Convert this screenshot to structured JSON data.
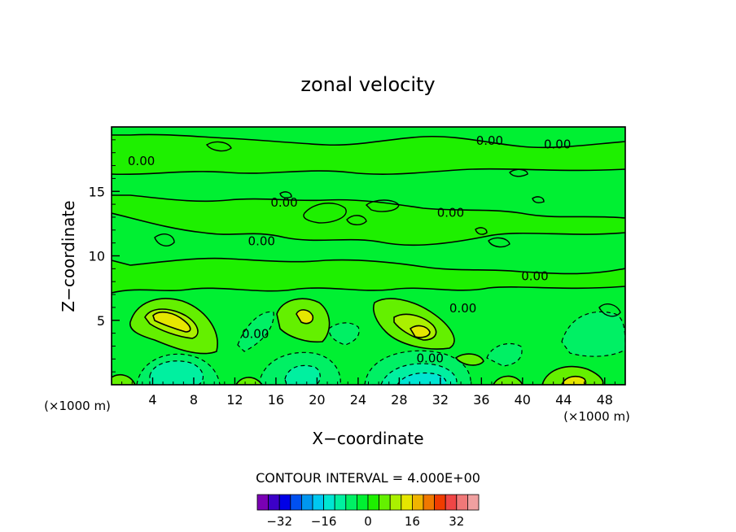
{
  "chart_data": {
    "type": "contour",
    "title": "zonal velocity",
    "xlabel": "X−coordinate",
    "ylabel": "Z−coordinate",
    "x_unit_left": "(×1000 m)",
    "x_unit_right": "(×1000 m)",
    "xlim": [
      0,
      50
    ],
    "ylim": [
      0,
      20
    ],
    "x_ticks": [
      4,
      8,
      12,
      16,
      20,
      24,
      28,
      32,
      36,
      40,
      44,
      48
    ],
    "y_ticks": [
      5,
      10,
      15
    ],
    "contour_interval_text": "CONTOUR INTERVAL = 4.000E+00",
    "contour_labels": [
      {
        "text": "0.00",
        "x": 36.8,
        "z": 19.0
      },
      {
        "text": "0.00",
        "x": 43.4,
        "z": 18.7
      },
      {
        "text": "0.00",
        "x": 2.9,
        "z": 17.4
      },
      {
        "text": "0.00",
        "x": 16.8,
        "z": 14.2
      },
      {
        "text": "0.00",
        "x": 33.0,
        "z": 13.4
      },
      {
        "text": "0.00",
        "x": 14.6,
        "z": 11.2
      },
      {
        "text": "0.00",
        "x": 41.2,
        "z": 8.5
      },
      {
        "text": "0.00",
        "x": 34.2,
        "z": 6.0
      },
      {
        "text": "0.00",
        "x": 14.0,
        "z": 4.0
      },
      {
        "text": "0.00",
        "x": 31.0,
        "z": 2.1
      }
    ],
    "colorbar": {
      "colors": [
        "#7a00b4",
        "#3c00c8",
        "#0000e6",
        "#0050f0",
        "#0096f0",
        "#00c8f0",
        "#00e6d2",
        "#00f0a0",
        "#00f064",
        "#00f032",
        "#1ef000",
        "#64f000",
        "#aaf000",
        "#e6e600",
        "#f0b400",
        "#f07800",
        "#f03c00",
        "#f04646",
        "#f07878",
        "#f0a0a0"
      ],
      "tick_labels": [
        "−32",
        "−16",
        "0",
        "16",
        "32"
      ],
      "tick_values": [
        -32,
        -16,
        0,
        16,
        32
      ],
      "vmin": -40,
      "vmax": 40
    },
    "features": [
      {
        "name": "positive-max",
        "x": 6,
        "z": 5.0,
        "level": 12
      },
      {
        "name": "positive-max",
        "x": 18.5,
        "z": 5.0,
        "level": 12
      },
      {
        "name": "positive-max",
        "x": 30,
        "z": 4.3,
        "level": 12
      },
      {
        "name": "positive-max",
        "x": 45,
        "z": 0.4,
        "level": 12
      },
      {
        "name": "negative-min",
        "x": 6.5,
        "z": 1.4,
        "level": -8
      },
      {
        "name": "negative-min",
        "x": 19,
        "z": 1.0,
        "level": -8
      },
      {
        "name": "negative-min",
        "x": 30.5,
        "z": 0.6,
        "level": -16
      },
      {
        "name": "negative-min",
        "x": 46,
        "z": 4.5,
        "level": -4
      }
    ]
  }
}
